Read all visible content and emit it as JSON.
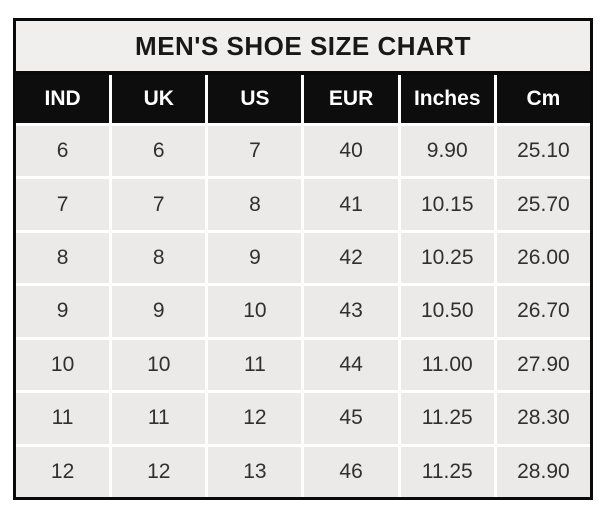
{
  "chart_data": {
    "type": "table",
    "title": "MEN'S SHOE SIZE CHART",
    "columns": [
      "IND",
      "UK",
      "US",
      "EUR",
      "Inches",
      "Cm"
    ],
    "rows": [
      [
        "6",
        "6",
        "7",
        "40",
        "9.90",
        "25.10"
      ],
      [
        "7",
        "7",
        "8",
        "41",
        "10.15",
        "25.70"
      ],
      [
        "8",
        "8",
        "9",
        "42",
        "10.25",
        "26.00"
      ],
      [
        "9",
        "9",
        "10",
        "43",
        "10.50",
        "26.70"
      ],
      [
        "10",
        "10",
        "11",
        "44",
        "11.00",
        "27.90"
      ],
      [
        "11",
        "11",
        "12",
        "45",
        "11.25",
        "28.30"
      ],
      [
        "12",
        "12",
        "13",
        "46",
        "11.25",
        "28.90"
      ]
    ],
    "layout": {
      "legend": "none",
      "grid": "white gridlines between cells",
      "header_style": "black background, white bold text",
      "title_style": "light gray band, black bold text"
    }
  },
  "colors": {
    "outer_border": "#0a0a0a",
    "title_bg": "#f0efed",
    "title_text": "#181818",
    "header_bg": "#0d0d0d",
    "header_text": "#ffffff",
    "cell_bg": "#ebeae8",
    "cell_text": "#303030",
    "gridline": "#ffffff",
    "page_bg": "#ffffff"
  }
}
